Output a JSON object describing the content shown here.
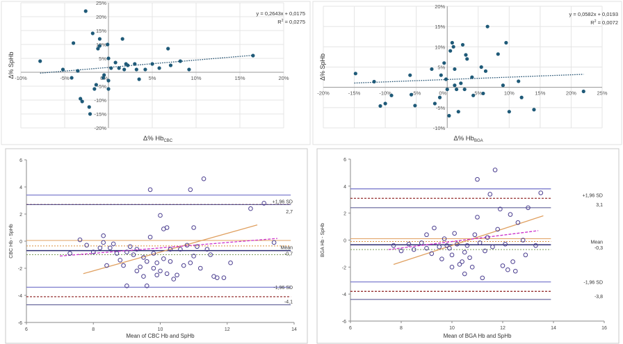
{
  "chart_data": [
    {
      "type": "scatter",
      "id": "tl",
      "title": "",
      "xlabel": "Δ% Hb",
      "xlabel_sub": "CBC",
      "ylabel": "Δ% SpHb",
      "xlim": [
        -0.1,
        0.2
      ],
      "ylim": [
        -0.2,
        0.25
      ],
      "xticks": [
        -0.1,
        -0.05,
        0,
        0.05,
        0.1,
        0.15,
        0.2
      ],
      "xtick_labels": [
        "-10%",
        "-5%",
        "0%",
        "5%",
        "10%",
        "15%",
        "20%"
      ],
      "yticks": [
        -0.2,
        -0.15,
        -0.1,
        -0.05,
        0,
        0.05,
        0.1,
        0.15,
        0.2,
        0.25
      ],
      "ytick_labels": [
        "-20%",
        "-15%",
        "-10%",
        "-5%",
        "0%",
        "5%",
        "10%",
        "15%",
        "20%",
        "25%"
      ],
      "equation": "y = 0,2643x + 0,0175",
      "r2_label": "R",
      "r2_value": " = 0,0275",
      "trend": {
        "slope": 0.2643,
        "intercept": 0.0175,
        "x_range": [
          -0.078,
          0.165
        ]
      },
      "points": [
        [
          -0.078,
          0.04
        ],
        [
          -0.052,
          0.01
        ],
        [
          -0.042,
          -0.02
        ],
        [
          -0.04,
          0.105
        ],
        [
          -0.035,
          0.005
        ],
        [
          -0.032,
          -0.095
        ],
        [
          -0.03,
          -0.105
        ],
        [
          -0.026,
          0.22
        ],
        [
          -0.022,
          -0.125
        ],
        [
          -0.021,
          -0.15
        ],
        [
          -0.018,
          0.14
        ],
        [
          -0.016,
          -0.06
        ],
        [
          -0.014,
          -0.045
        ],
        [
          -0.012,
          0.085
        ],
        [
          -0.01,
          0.12
        ],
        [
          -0.01,
          0.095
        ],
        [
          -0.006,
          -0.02
        ],
        [
          -0.005,
          -0.01
        ],
        [
          -0.001,
          0.1
        ],
        [
          0.0,
          0.05
        ],
        [
          0.0,
          -0.06
        ],
        [
          0.0,
          -0.03
        ],
        [
          0.003,
          0.015
        ],
        [
          0.008,
          0.035
        ],
        [
          0.012,
          0.015
        ],
        [
          0.016,
          0.12
        ],
        [
          0.018,
          0.01
        ],
        [
          0.02,
          0.03
        ],
        [
          0.022,
          0.025
        ],
        [
          0.03,
          0.03
        ],
        [
          0.032,
          0.01
        ],
        [
          0.035,
          -0.025
        ],
        [
          0.042,
          0.01
        ],
        [
          0.05,
          0.03
        ],
        [
          0.058,
          0.015
        ],
        [
          0.068,
          0.085
        ],
        [
          0.071,
          0.025
        ],
        [
          0.082,
          0.04
        ],
        [
          0.092,
          0.01
        ],
        [
          0.165,
          0.06
        ]
      ]
    },
    {
      "type": "scatter",
      "id": "tr",
      "title": "",
      "xlabel": "Δ% Hb",
      "xlabel_sub": "BGA",
      "ylabel": "Δ% SpHb",
      "xlim": [
        -0.2,
        0.25
      ],
      "ylim": [
        -0.1,
        0.2
      ],
      "xticks": [
        -0.2,
        -0.15,
        -0.1,
        -0.05,
        0,
        0.05,
        0.1,
        0.15,
        0.2,
        0.25
      ],
      "xtick_labels": [
        "-20%",
        "-15%",
        "-10%",
        "-5%",
        "0%",
        "5%",
        "10%",
        "15%",
        "20%",
        "25%"
      ],
      "yticks": [
        -0.1,
        -0.05,
        0,
        0.05,
        0.1,
        0.15,
        0.2
      ],
      "ytick_labels": [
        "-10%",
        "-5%",
        "0%",
        "5%",
        "10%",
        "15%",
        "20%"
      ],
      "equation": "y = 0,0582x + 0,0193",
      "r2_label": "R",
      "r2_value": " = 0,0072",
      "trend": {
        "slope": 0.0582,
        "intercept": 0.0193,
        "x_range": [
          -0.15,
          0.22
        ]
      },
      "points": [
        [
          -0.148,
          0.034
        ],
        [
          -0.118,
          0.014
        ],
        [
          -0.108,
          -0.046
        ],
        [
          -0.1,
          -0.04
        ],
        [
          -0.09,
          -0.02
        ],
        [
          -0.06,
          0.03
        ],
        [
          -0.058,
          -0.018
        ],
        [
          -0.052,
          -0.045
        ],
        [
          -0.025,
          0.045
        ],
        [
          -0.02,
          -0.04
        ],
        [
          -0.012,
          -0.025
        ],
        [
          -0.01,
          0.03
        ],
        [
          -0.005,
          0.06
        ],
        [
          -0.002,
          0.02
        ],
        [
          0.0,
          -0.005
        ],
        [
          0.003,
          -0.07
        ],
        [
          0.005,
          0.09
        ],
        [
          0.008,
          0.11
        ],
        [
          0.01,
          0.1
        ],
        [
          0.012,
          0.045
        ],
        [
          0.012,
          0.005
        ],
        [
          0.015,
          -0.005
        ],
        [
          0.018,
          -0.06
        ],
        [
          0.022,
          0.01
        ],
        [
          0.025,
          0.105
        ],
        [
          0.028,
          -0.005
        ],
        [
          0.03,
          0.08
        ],
        [
          0.032,
          0.07
        ],
        [
          0.04,
          0.025
        ],
        [
          0.042,
          -0.02
        ],
        [
          0.055,
          0.05
        ],
        [
          0.058,
          -0.015
        ],
        [
          0.062,
          0.04
        ],
        [
          0.065,
          0.15
        ],
        [
          0.082,
          0.082
        ],
        [
          0.09,
          0.005
        ],
        [
          0.095,
          0.11
        ],
        [
          0.1,
          -0.06
        ],
        [
          0.115,
          0.015
        ],
        [
          0.12,
          -0.025
        ],
        [
          0.14,
          -0.055
        ],
        [
          0.22,
          -0.01
        ]
      ]
    },
    {
      "type": "scatter",
      "id": "bl",
      "title": "",
      "xlabel": "Mean of CBC Hb and SpHb",
      "ylabel": "CBC Hb - SpHb",
      "xlim": [
        6,
        14
      ],
      "ylim": [
        -6,
        6
      ],
      "xticks": [
        6,
        8,
        10,
        12,
        14
      ],
      "yticks": [
        -6,
        -4,
        -2,
        0,
        2,
        4,
        6
      ],
      "x_end": 13.9,
      "regression": {
        "x0": 7.7,
        "y0": -2.4,
        "x1": 12.9,
        "y1": 1.2
      },
      "loa_lines": [
        {
          "y": 2.7,
          "style": "dash-red",
          "label": "+1,96 SD"
        },
        {
          "y": 2.7,
          "style": "solid-navy",
          "label": "2,7",
          "offset": -0.75
        },
        {
          "y": 3.4,
          "style": "solid-blue"
        },
        {
          "y": -0.7,
          "style": "solid-navy-thick",
          "label": "Mean"
        },
        {
          "y": -0.7,
          "style": "none",
          "label": "-0,7",
          "offset": -0.45
        },
        {
          "y": 0.05,
          "style": "solid-orange"
        },
        {
          "y": -0.35,
          "style": "dash-orange"
        },
        {
          "y": -1.0,
          "style": "dash-green"
        },
        {
          "y": -3.4,
          "style": "solid-blue"
        },
        {
          "y": -4.1,
          "style": "dash-red",
          "label": "-1,96 SD",
          "offset": 0.45
        },
        {
          "y": -4.7,
          "style": "solid-navy",
          "label": "-4,1"
        }
      ],
      "magenta_line": {
        "x0": 7.0,
        "y0": -1.1,
        "x1": 13.5,
        "y1": 0.2
      },
      "points": [
        [
          7.3,
          -0.9
        ],
        [
          7.6,
          0.1
        ],
        [
          7.8,
          -0.3
        ],
        [
          8.0,
          -0.8
        ],
        [
          8.2,
          -0.5
        ],
        [
          8.3,
          0.4
        ],
        [
          8.3,
          -0.1
        ],
        [
          8.4,
          -1.8
        ],
        [
          8.5,
          -0.5
        ],
        [
          8.6,
          -0.2
        ],
        [
          8.7,
          -0.9
        ],
        [
          8.8,
          -1.4
        ],
        [
          8.9,
          -1.8
        ],
        [
          9.0,
          -3.3
        ],
        [
          9.0,
          -0.8
        ],
        [
          9.1,
          -0.4
        ],
        [
          9.2,
          -1.0
        ],
        [
          9.3,
          -0.6
        ],
        [
          9.3,
          -2.2
        ],
        [
          9.4,
          -1.9
        ],
        [
          9.5,
          -1.2
        ],
        [
          9.5,
          -2.6
        ],
        [
          9.6,
          -1.5
        ],
        [
          9.6,
          -3.3
        ],
        [
          9.7,
          0.3
        ],
        [
          9.7,
          3.8
        ],
        [
          9.8,
          -2.0
        ],
        [
          9.8,
          -0.9
        ],
        [
          9.9,
          -1.6
        ],
        [
          9.9,
          -2.5
        ],
        [
          10.0,
          -2.2
        ],
        [
          10.0,
          1.9
        ],
        [
          10.1,
          -1.3
        ],
        [
          10.1,
          0.9
        ],
        [
          10.2,
          1.0
        ],
        [
          10.2,
          -2.4
        ],
        [
          10.3,
          -0.6
        ],
        [
          10.3,
          -1.5
        ],
        [
          10.4,
          -2.8
        ],
        [
          10.5,
          -2.5
        ],
        [
          10.6,
          -0.6
        ],
        [
          10.7,
          -1.8
        ],
        [
          10.8,
          -0.3
        ],
        [
          10.9,
          -1.6
        ],
        [
          10.9,
          3.8
        ],
        [
          11.0,
          1.0
        ],
        [
          11.0,
          -1.1
        ],
        [
          11.1,
          -0.4
        ],
        [
          11.2,
          -2.0
        ],
        [
          11.3,
          4.6
        ],
        [
          11.4,
          -0.6
        ],
        [
          11.5,
          -1.0
        ],
        [
          11.6,
          -2.6
        ],
        [
          11.7,
          -2.7
        ],
        [
          11.9,
          -2.7
        ],
        [
          12.1,
          -1.6
        ],
        [
          12.7,
          2.4
        ],
        [
          13.1,
          2.8
        ],
        [
          13.4,
          -0.1
        ]
      ]
    },
    {
      "type": "scatter",
      "id": "br",
      "title": "",
      "xlabel": "Mean of BGA Hb and SpHb",
      "ylabel": "BGA Hb - SpHb",
      "xlim": [
        6,
        16
      ],
      "ylim": [
        -6,
        6
      ],
      "xticks": [
        6,
        8,
        10,
        12,
        14,
        16
      ],
      "yticks": [
        -6,
        -4,
        -2,
        0,
        2,
        4,
        6
      ],
      "x_end": 13.9,
      "regression": {
        "x0": 7.7,
        "y0": -1.8,
        "x1": 13.6,
        "y1": 1.8
      },
      "loa_lines": [
        {
          "y": 3.1,
          "style": "dash-red",
          "label": "+1,96 SD"
        },
        {
          "y": 3.1,
          "style": "none",
          "label": "3,1",
          "offset": -0.7
        },
        {
          "y": 3.8,
          "style": "solid-blue"
        },
        {
          "y": 2.4,
          "style": "solid-navy"
        },
        {
          "y": 0.1,
          "style": "solid-orange"
        },
        {
          "y": -0.1,
          "style": "dash-orange"
        },
        {
          "y": -0.35,
          "style": "solid-navy-thick",
          "label": "Mean"
        },
        {
          "y": -0.35,
          "style": "none",
          "label": "-0,3",
          "offset": -0.45
        },
        {
          "y": -0.7,
          "style": "dash-green"
        },
        {
          "y": -3.1,
          "style": "solid-blue"
        },
        {
          "y": -3.8,
          "style": "dash-red",
          "label": "-1,96 SD",
          "offset": 0.45
        },
        {
          "y": -4.4,
          "style": "solid-navy",
          "label": "-3,8",
          "offset": 0.0
        }
      ],
      "magenta_line": {
        "x0": 7.5,
        "y0": -0.7,
        "x1": 13.4,
        "y1": 0.7
      },
      "points": [
        [
          7.7,
          -0.4
        ],
        [
          8.0,
          -0.8
        ],
        [
          8.3,
          -0.3
        ],
        [
          8.5,
          -0.7
        ],
        [
          8.8,
          -0.2
        ],
        [
          9.0,
          0.4
        ],
        [
          9.0,
          -0.6
        ],
        [
          9.2,
          -1.0
        ],
        [
          9.3,
          0.9
        ],
        [
          9.5,
          -0.5
        ],
        [
          9.6,
          -1.4
        ],
        [
          9.7,
          0.1
        ],
        [
          9.8,
          -0.4
        ],
        [
          9.9,
          -0.6
        ],
        [
          10.0,
          -1.1
        ],
        [
          10.0,
          -2.0
        ],
        [
          10.1,
          0.5
        ],
        [
          10.2,
          -0.3
        ],
        [
          10.3,
          -1.8
        ],
        [
          10.4,
          -1.6
        ],
        [
          10.5,
          -0.9
        ],
        [
          10.5,
          -2.5
        ],
        [
          10.6,
          -0.4
        ],
        [
          10.7,
          -1.3
        ],
        [
          10.8,
          -2.0
        ],
        [
          10.9,
          0.4
        ],
        [
          11.0,
          4.5
        ],
        [
          11.0,
          1.7
        ],
        [
          11.1,
          -0.2
        ],
        [
          11.2,
          -2.8
        ],
        [
          11.3,
          -0.8
        ],
        [
          11.4,
          0.2
        ],
        [
          11.5,
          3.4
        ],
        [
          11.6,
          -0.5
        ],
        [
          11.7,
          5.2
        ],
        [
          11.8,
          0.8
        ],
        [
          11.9,
          2.3
        ],
        [
          12.0,
          -1.9
        ],
        [
          12.1,
          -0.3
        ],
        [
          12.2,
          -2.2
        ],
        [
          12.3,
          1.9
        ],
        [
          12.4,
          -1.6
        ],
        [
          12.5,
          -2.3
        ],
        [
          12.6,
          1.3
        ],
        [
          12.8,
          0.0
        ],
        [
          13.0,
          2.4
        ],
        [
          13.5,
          3.5
        ],
        [
          13.3,
          -0.4
        ],
        [
          12.9,
          -1.1
        ]
      ]
    }
  ]
}
